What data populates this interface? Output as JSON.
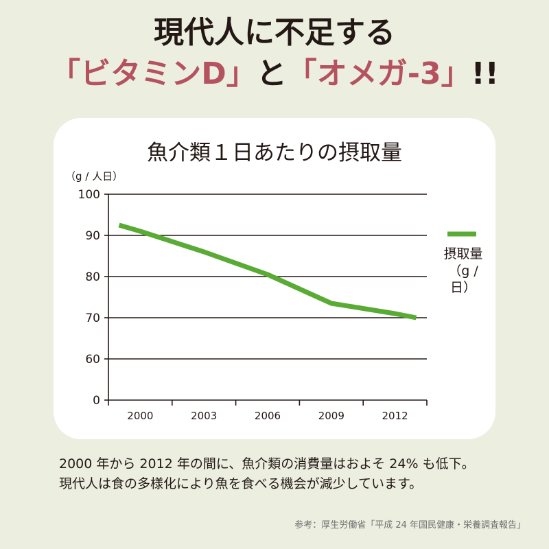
{
  "headline": {
    "line1": "現代人に不足する",
    "part1": "「ビタミンD」",
    "part2": "と",
    "part3": "「オメガ-3」",
    "part4": "!!"
  },
  "chart_data": {
    "type": "line",
    "title": "魚介類１日あたりの摂取量",
    "yunit_label": "（g / 人日）",
    "x_ticks": [
      "2000",
      "2003",
      "2006",
      "2009",
      "2012"
    ],
    "y_ticks": [
      0,
      60,
      70,
      80,
      90,
      100
    ],
    "axis_break": true,
    "grid": true,
    "legend_position": "right",
    "series": [
      {
        "name": "摂取量",
        "unit_label": "（g / 日）",
        "color": "#5aab35",
        "x": [
          1999,
          2000,
          2003,
          2006,
          2009,
          2012,
          2013
        ],
        "y": [
          92.5,
          91,
          86,
          80.5,
          73.5,
          71,
          70
        ]
      }
    ]
  },
  "body_text": {
    "line1": "2000 年から 2012 年の間に、魚介類の消費量はおよそ 24% も低下。",
    "line2": "現代人は食の多様化により魚を食べる機会が減少しています。"
  },
  "source": "参考：厚生労働省「平成 24 年国民健康・栄養調査報告」"
}
